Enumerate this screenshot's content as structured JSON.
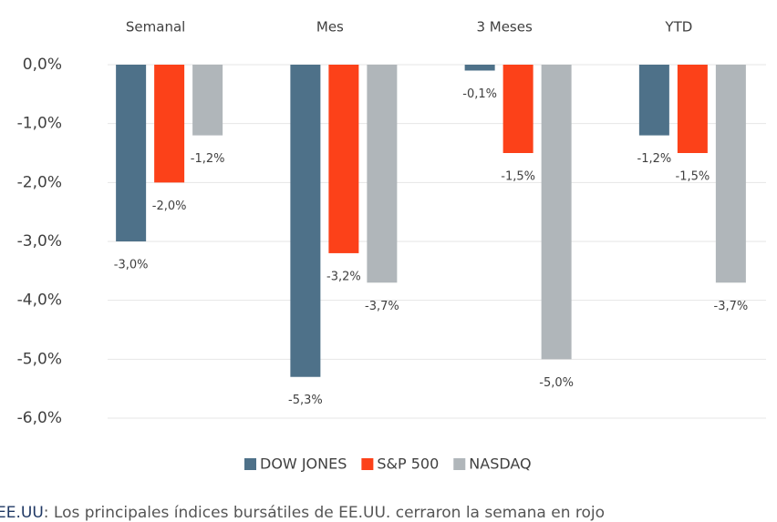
{
  "chart_data": {
    "type": "bar",
    "categories": [
      "Semanal",
      "Mes",
      "3 Meses",
      "YTD"
    ],
    "series": [
      {
        "name": "DOW JONES",
        "color": "#4e7189",
        "values": [
          -3.0,
          -5.3,
          -0.1,
          -1.2
        ],
        "value_labels": [
          "-3,0%",
          "-5,3%",
          "-0,1%",
          "-1,2%"
        ]
      },
      {
        "name": "S&P 500",
        "color": "#fc4119",
        "values": [
          -2.0,
          -3.2,
          -1.5,
          -1.5
        ],
        "value_labels": [
          "-2,0%",
          "-3,2%",
          "-1,5%",
          "-1,5%"
        ]
      },
      {
        "name": "NASDAQ",
        "color": "#b0b6ba",
        "values": [
          -1.2,
          -3.7,
          -5.0,
          -3.7
        ],
        "value_labels": [
          "-1,2%",
          "-3,7%",
          "-5,0%",
          "-3,7%"
        ]
      }
    ],
    "ylim": [
      -6,
      0
    ],
    "yticks": [
      {
        "value": 0,
        "label": "0,0%"
      },
      {
        "value": -1,
        "label": "-1,0%"
      },
      {
        "value": -2,
        "label": "-2,0%"
      },
      {
        "value": -3,
        "label": "-3,0%"
      },
      {
        "value": -4,
        "label": "-4,0%"
      },
      {
        "value": -5,
        "label": "-5,0%"
      },
      {
        "value": -6,
        "label": "-6,0%"
      }
    ],
    "grid": true,
    "legend": "bottom"
  },
  "caption": {
    "highlight": "EE.UU",
    "text": ": Los principales índices bursátiles de EE.UU. cerraron la semana en rojo"
  }
}
